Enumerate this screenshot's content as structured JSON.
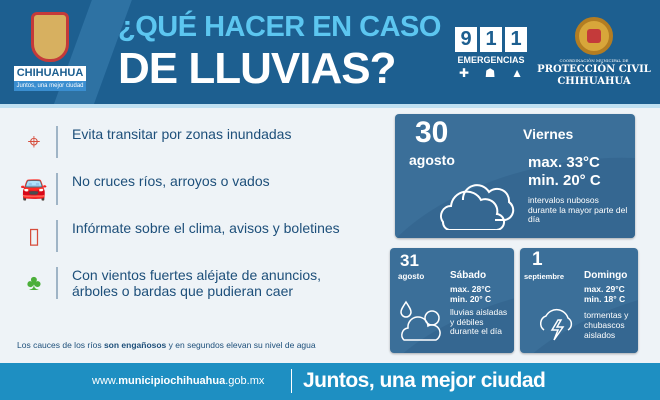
{
  "header": {
    "logo": {
      "name": "CHIHUAHUA",
      "tagline": "Juntos, una mejor ciudad"
    },
    "title_line1": "¿QUÉ HACER EN CASO",
    "title_line2": "DE LLUVIAS?",
    "emergency": {
      "digits": [
        "9",
        "1",
        "1"
      ],
      "label": "EMERGENCIAS",
      "icons": [
        "cross-icon",
        "helmet-icon",
        "siren-icon"
      ]
    },
    "civil_protection": {
      "small": "COORDINACIÓN MUNICIPAL DE",
      "line1": "PROTECCIÓN CIVIL",
      "line2": "CHIHUAHUA"
    }
  },
  "tips": [
    {
      "icon": "map-pin-icon",
      "text": "Evita transitar por zonas inundadas"
    },
    {
      "icon": "flooded-car-icon",
      "text": "No cruces ríos, arroyos o vados"
    },
    {
      "icon": "phone-icon",
      "text": "Infórmate sobre el clima, avisos y boletines"
    },
    {
      "icon": "wind-tree-icon",
      "text": "Con vientos fuertes aléjate de anuncios, árboles o bardas que pudieran caer"
    }
  ],
  "note": {
    "before": "Los cauces de los ríos ",
    "bold": "son engañosos",
    "after": " y en segundos elevan su nivel de agua"
  },
  "forecast": [
    {
      "day_num": "30",
      "month": "agosto",
      "weekday": "Viernes",
      "max": "max. 33°C",
      "min": "min. 20° C",
      "desc": "intervalos nubosos durante la mayor parte del día",
      "icon": "clouds-icon"
    },
    {
      "day_num": "31",
      "month": "agosto",
      "weekday": "Sábado",
      "max": "max. 28°C",
      "min": "min. 20° C",
      "desc": "lluvias aisladas y débiles durante el día",
      "icon": "rain-sun-cloud-icon"
    },
    {
      "day_num": "1",
      "month": "septiembre",
      "weekday": "Domingo",
      "max": "max. 29°C",
      "min": "min. 18° C",
      "desc": "tormentas y chubascos aislados",
      "icon": "storm-cloud-icon"
    }
  ],
  "footer": {
    "url_prefix": "www.",
    "url_bold": "municipiochihuahua",
    "url_suffix": ".gob.mx",
    "slogan": "Juntos, una mejor ciudad"
  },
  "colors": {
    "header": "#1d5f90",
    "title_accent": "#5cc6f0",
    "card": "#3b6f99",
    "footer": "#1e8fc2",
    "icon_red": "#d64d3c"
  }
}
